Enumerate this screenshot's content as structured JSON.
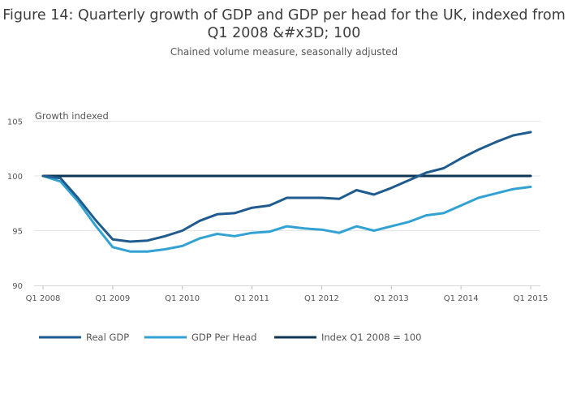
{
  "chart_data": {
    "type": "line",
    "title": "Figure 14: Quarterly growth of GDP and GDP per head for the UK, indexed from Q1 2008 &#x3D; 100",
    "subtitle": "Chained volume measure, seasonally adjusted",
    "ylabel": "Growth indexed",
    "xlabel": "",
    "ylim": [
      90,
      106
    ],
    "yticks": [
      90,
      95,
      100,
      105
    ],
    "x": [
      "Q1 2008",
      "Q2 2008",
      "Q3 2008",
      "Q4 2008",
      "Q1 2009",
      "Q2 2009",
      "Q3 2009",
      "Q4 2009",
      "Q1 2010",
      "Q2 2010",
      "Q3 2010",
      "Q4 2010",
      "Q1 2011",
      "Q2 2011",
      "Q3 2011",
      "Q4 2011",
      "Q1 2012",
      "Q2 2012",
      "Q3 2012",
      "Q4 2012",
      "Q1 2013",
      "Q2 2013",
      "Q3 2013",
      "Q4 2013",
      "Q1 2014",
      "Q2 2014",
      "Q3 2014",
      "Q4 2014",
      "Q1 2015"
    ],
    "xtick_labels": [
      "Q1 2008",
      "Q1 2009",
      "Q1 2010",
      "Q1 2011",
      "Q1 2012",
      "Q1 2013",
      "Q1 2014",
      "Q1 2015"
    ],
    "grid": true,
    "legend_position": "bottom-left",
    "series": [
      {
        "name": "Real GDP",
        "color": "#1f5b8e",
        "values": [
          100.0,
          99.8,
          98.0,
          96.0,
          94.2,
          94.0,
          94.1,
          94.5,
          95.0,
          95.9,
          96.5,
          96.6,
          97.1,
          97.3,
          98.0,
          98.0,
          98.0,
          97.9,
          98.7,
          98.3,
          98.9,
          99.6,
          100.3,
          100.7,
          101.6,
          102.4,
          103.1,
          103.7,
          104.0
        ]
      },
      {
        "name": "GDP Per Head",
        "color": "#31a2d2",
        "values": [
          100.0,
          99.5,
          97.7,
          95.5,
          93.5,
          93.1,
          93.1,
          93.3,
          93.6,
          94.3,
          94.7,
          94.5,
          94.8,
          94.9,
          95.4,
          95.2,
          95.1,
          94.8,
          95.4,
          95.0,
          95.4,
          95.8,
          96.4,
          96.6,
          97.3,
          98.0,
          98.4,
          98.8,
          99.0
        ]
      },
      {
        "name": "Index Q1 2008 = 100",
        "color": "#0d3657",
        "values": [
          100,
          100,
          100,
          100,
          100,
          100,
          100,
          100,
          100,
          100,
          100,
          100,
          100,
          100,
          100,
          100,
          100,
          100,
          100,
          100,
          100,
          100,
          100,
          100,
          100,
          100,
          100,
          100,
          100
        ]
      }
    ]
  }
}
